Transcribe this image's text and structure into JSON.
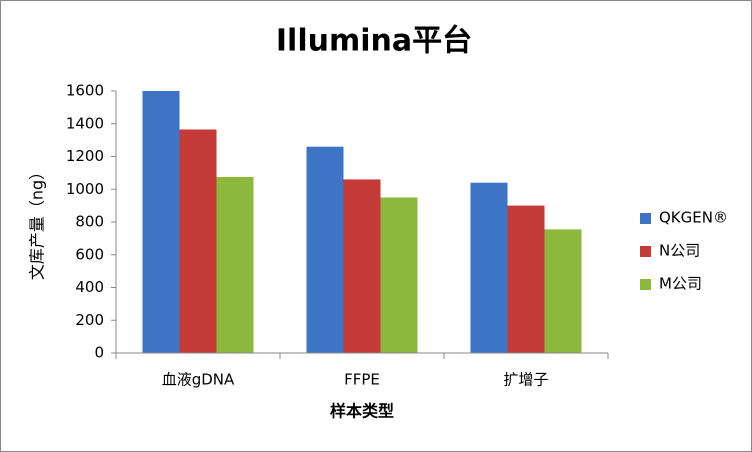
{
  "chart_data": {
    "type": "bar",
    "title": "Illumina平台",
    "x_label": "样本类型",
    "y_label": "文库产量（ng）",
    "categories": [
      "血液gDNA",
      "FFPE",
      "扩增子"
    ],
    "series": [
      {
        "name": "QKGEN®",
        "color": "#3d74c6",
        "values": [
          1600,
          1260,
          1040
        ]
      },
      {
        "name": "N公司",
        "color": "#c43a36",
        "values": [
          1365,
          1060,
          900
        ]
      },
      {
        "name": "M公司",
        "color": "#8cb83d",
        "values": [
          1075,
          950,
          755
        ]
      }
    ],
    "ylim": [
      0,
      1600
    ],
    "yticks": [
      0,
      200,
      400,
      600,
      800,
      1000,
      1200,
      1400,
      1600
    ],
    "grid": false,
    "legend": "right"
  }
}
